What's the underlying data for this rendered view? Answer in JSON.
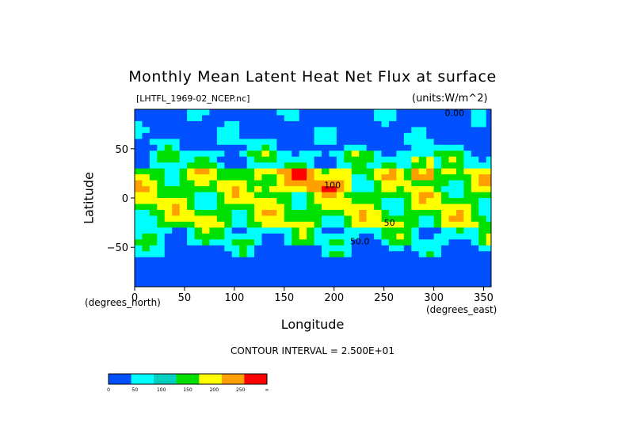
{
  "chart_data": {
    "type": "heatmap",
    "title": "Monthly Mean Latent Heat Net Flux at surface",
    "subtitle_left": "[LHTFL_1969-02_NCEP.nc]",
    "subtitle_right": "(units:W/m^2)",
    "xlabel": "Longitude",
    "ylabel": "Latitude",
    "x_unit_label": "(degrees_east)",
    "y_unit_label": "(degrees_north)",
    "xlim": [
      0,
      357.5
    ],
    "ylim": [
      -90,
      90
    ],
    "x_ticks": [
      "0",
      "50",
      "100",
      "150",
      "200",
      "250",
      "300",
      "350"
    ],
    "x_tick_values": [
      0,
      50,
      100,
      150,
      200,
      250,
      300,
      350
    ],
    "y_ticks": [
      "50",
      "0",
      "−50"
    ],
    "y_tick_values": [
      50,
      0,
      -50
    ],
    "contour_interval_text": "CONTOUR INTERVAL = 2.500E+01",
    "contour_labels": [
      "100",
      "50",
      "50.0",
      "0.00"
    ],
    "colorbar": {
      "levels": [
        "0",
        "50",
        "100",
        "150",
        "200",
        "250",
        "∞"
      ],
      "colors": [
        "#0050ff",
        "#00ffff",
        "#00d0c0",
        "#00e000",
        "#ffff00",
        "#ffa000",
        "#ff0000"
      ]
    }
  }
}
